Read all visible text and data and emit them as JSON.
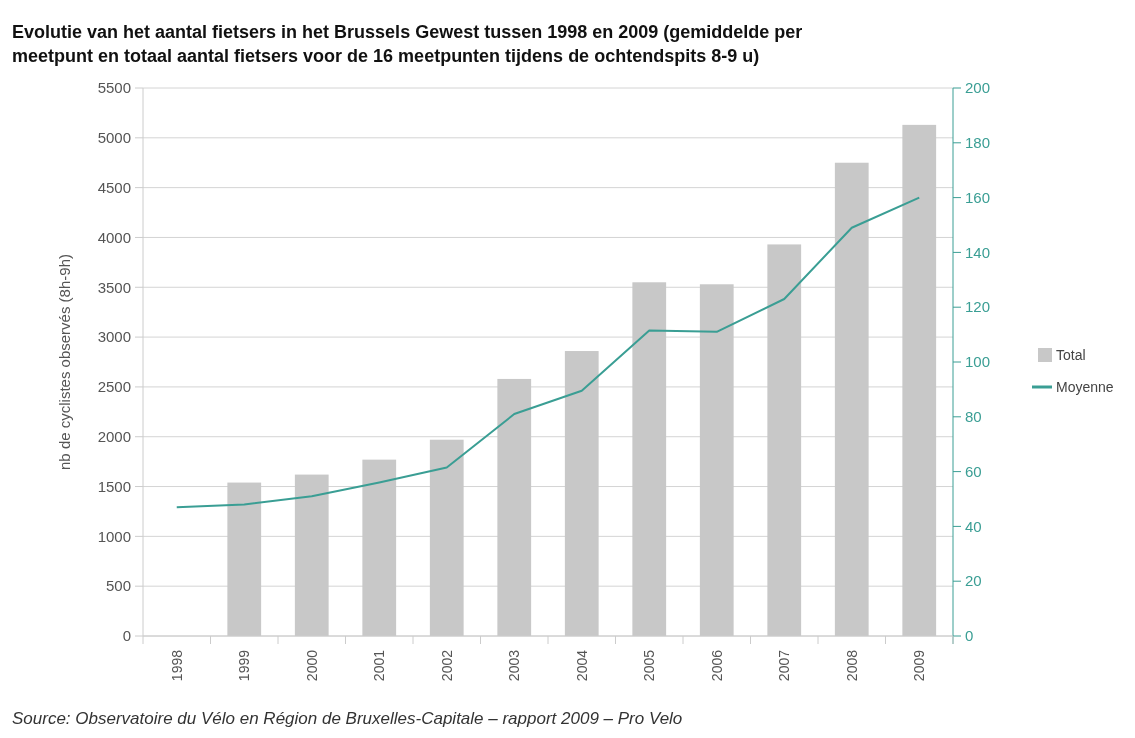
{
  "chart_data": {
    "type": "bar",
    "title": "Evolutie van het aantal fietsers in het Brussels Gewest tussen 1998 en 2009 (gemiddelde per meetpunt en totaal aantal fietsers voor de 16 meetpunten tijdens de ochtendspits 8-9 u)",
    "ylabel": "nb de cyclistes observés (8h-9h)",
    "annotations": [
      "Source: Observatoire du Vélo en Région de Bruxelles-Capitale – rapport 2009 – Pro Velo"
    ],
    "categories": [
      "1998",
      "1999",
      "2000",
      "2001",
      "2002",
      "2003",
      "2004",
      "2005",
      "2006",
      "2007",
      "2008",
      "2009"
    ],
    "series": [
      {
        "name": "Total",
        "color": "#c8c8c8",
        "values": [
          null,
          1540,
          1620,
          1770,
          1970,
          2580,
          2860,
          3550,
          3530,
          3930,
          4750,
          5130
        ]
      },
      {
        "name": "Moyenne",
        "type": "line",
        "axis": "y2",
        "color": "#3a9e94",
        "values": [
          47,
          48,
          51,
          56,
          61.5,
          81,
          89.5,
          111.5,
          111,
          123,
          149,
          160
        ]
      }
    ],
    "ylim": [
      0,
      5500
    ],
    "yticks": [
      0,
      500,
      1000,
      1500,
      2000,
      2500,
      3000,
      3500,
      4000,
      4500,
      5000,
      5500
    ],
    "y2lim": [
      0,
      200
    ],
    "y2ticks": [
      0,
      20,
      40,
      60,
      80,
      100,
      120,
      140,
      160,
      180,
      200
    ],
    "grid": "y",
    "legend": "right",
    "marker": "none",
    "line_style": "solid"
  }
}
